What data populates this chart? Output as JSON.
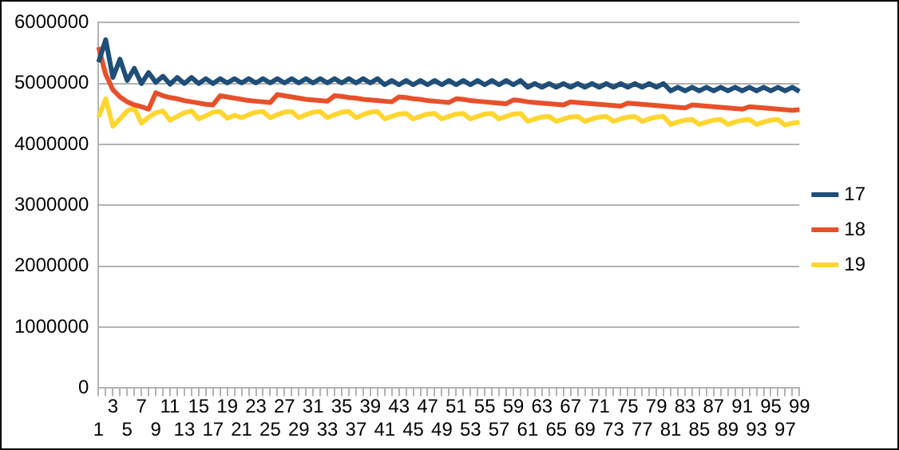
{
  "chart_data": {
    "type": "line",
    "categories": [
      "1",
      null,
      "3",
      null,
      "5",
      null,
      "7",
      null,
      "9",
      null,
      "11",
      null,
      "13",
      null,
      "15",
      null,
      "17",
      null,
      "19",
      null,
      "21",
      null,
      "23",
      null,
      "25",
      null,
      "27",
      null,
      "29",
      null,
      "31",
      null,
      "33",
      null,
      "35",
      null,
      "37",
      null,
      "39",
      null,
      "41",
      null,
      "43",
      null,
      "45",
      null,
      "47",
      null,
      "49",
      null,
      "51",
      null,
      "53",
      null,
      "55",
      null,
      "57",
      null,
      "59",
      null,
      "61",
      null,
      "63",
      null,
      "65",
      null,
      "67",
      null,
      "69",
      null,
      "71",
      null,
      "73",
      null,
      "75",
      null,
      "77",
      null,
      "79",
      null,
      "81",
      null,
      "83",
      null,
      "85",
      null,
      "87",
      null,
      "89",
      null,
      "91",
      null,
      "93",
      null,
      "95",
      null,
      "97",
      null,
      "99"
    ],
    "series": [
      {
        "name": "17",
        "color": "#1f4e79",
        "values": [
          5350000,
          5720000,
          5100000,
          5400000,
          5050000,
          5250000,
          5000000,
          5180000,
          5020000,
          5120000,
          4990000,
          5100000,
          5000000,
          5100000,
          5000000,
          5080000,
          5000000,
          5080000,
          5010000,
          5080000,
          5010000,
          5080000,
          5010000,
          5080000,
          5010000,
          5080000,
          5010000,
          5080000,
          5010000,
          5080000,
          5010000,
          5080000,
          5010000,
          5080000,
          5010000,
          5080000,
          5010000,
          5080000,
          5010000,
          5080000,
          4980000,
          5050000,
          4980000,
          5050000,
          4980000,
          5050000,
          4980000,
          5050000,
          4980000,
          5050000,
          4980000,
          5050000,
          4980000,
          5050000,
          4980000,
          5050000,
          4980000,
          5050000,
          4980000,
          5050000,
          4940000,
          5000000,
          4940000,
          5000000,
          4940000,
          5000000,
          4940000,
          5000000,
          4940000,
          5000000,
          4940000,
          5000000,
          4940000,
          5000000,
          4940000,
          5000000,
          4940000,
          5000000,
          4940000,
          5000000,
          4880000,
          4940000,
          4880000,
          4940000,
          4880000,
          4940000,
          4880000,
          4940000,
          4880000,
          4940000,
          4880000,
          4940000,
          4880000,
          4940000,
          4880000,
          4940000,
          4880000,
          4940000,
          4870000
        ]
      },
      {
        "name": "18",
        "color": "#e8502a",
        "values": [
          5600000,
          5150000,
          4900000,
          4780000,
          4700000,
          4650000,
          4620000,
          4580000,
          4850000,
          4800000,
          4770000,
          4750000,
          4720000,
          4700000,
          4680000,
          4660000,
          4650000,
          4800000,
          4780000,
          4760000,
          4740000,
          4720000,
          4710000,
          4700000,
          4690000,
          4820000,
          4800000,
          4780000,
          4760000,
          4740000,
          4730000,
          4720000,
          4710000,
          4800000,
          4790000,
          4770000,
          4760000,
          4740000,
          4730000,
          4720000,
          4710000,
          4700000,
          4780000,
          4770000,
          4750000,
          4740000,
          4720000,
          4710000,
          4700000,
          4690000,
          4750000,
          4740000,
          4720000,
          4710000,
          4700000,
          4690000,
          4680000,
          4670000,
          4730000,
          4720000,
          4700000,
          4690000,
          4680000,
          4670000,
          4660000,
          4650000,
          4700000,
          4690000,
          4680000,
          4670000,
          4660000,
          4650000,
          4640000,
          4630000,
          4680000,
          4670000,
          4660000,
          4650000,
          4640000,
          4630000,
          4620000,
          4610000,
          4600000,
          4650000,
          4640000,
          4630000,
          4620000,
          4610000,
          4600000,
          4590000,
          4580000,
          4620000,
          4610000,
          4600000,
          4590000,
          4580000,
          4570000,
          4560000,
          4570000
        ]
      },
      {
        "name": "19",
        "color": "#ffd530",
        "values": [
          4450000,
          4750000,
          4300000,
          4420000,
          4550000,
          4600000,
          4350000,
          4450000,
          4520000,
          4550000,
          4400000,
          4460000,
          4520000,
          4550000,
          4420000,
          4470000,
          4530000,
          4540000,
          4430000,
          4480000,
          4440000,
          4490000,
          4530000,
          4540000,
          4440000,
          4490000,
          4530000,
          4540000,
          4440000,
          4490000,
          4530000,
          4540000,
          4440000,
          4490000,
          4530000,
          4540000,
          4440000,
          4490000,
          4530000,
          4540000,
          4420000,
          4460000,
          4500000,
          4510000,
          4420000,
          4460000,
          4500000,
          4510000,
          4420000,
          4460000,
          4500000,
          4510000,
          4420000,
          4460000,
          4500000,
          4510000,
          4420000,
          4460000,
          4500000,
          4510000,
          4380000,
          4420000,
          4450000,
          4460000,
          4380000,
          4420000,
          4450000,
          4460000,
          4380000,
          4420000,
          4450000,
          4460000,
          4380000,
          4420000,
          4450000,
          4460000,
          4380000,
          4420000,
          4450000,
          4460000,
          4330000,
          4370000,
          4400000,
          4410000,
          4330000,
          4370000,
          4400000,
          4410000,
          4330000,
          4370000,
          4400000,
          4410000,
          4330000,
          4370000,
          4400000,
          4410000,
          4320000,
          4350000,
          4360000
        ]
      }
    ],
    "ylim": [
      0,
      6000000
    ],
    "yticks": [
      0,
      1000000,
      2000000,
      3000000,
      4000000,
      5000000,
      6000000
    ],
    "grid": "y",
    "legend": "right",
    "marker": "none",
    "line_style": "solid"
  }
}
